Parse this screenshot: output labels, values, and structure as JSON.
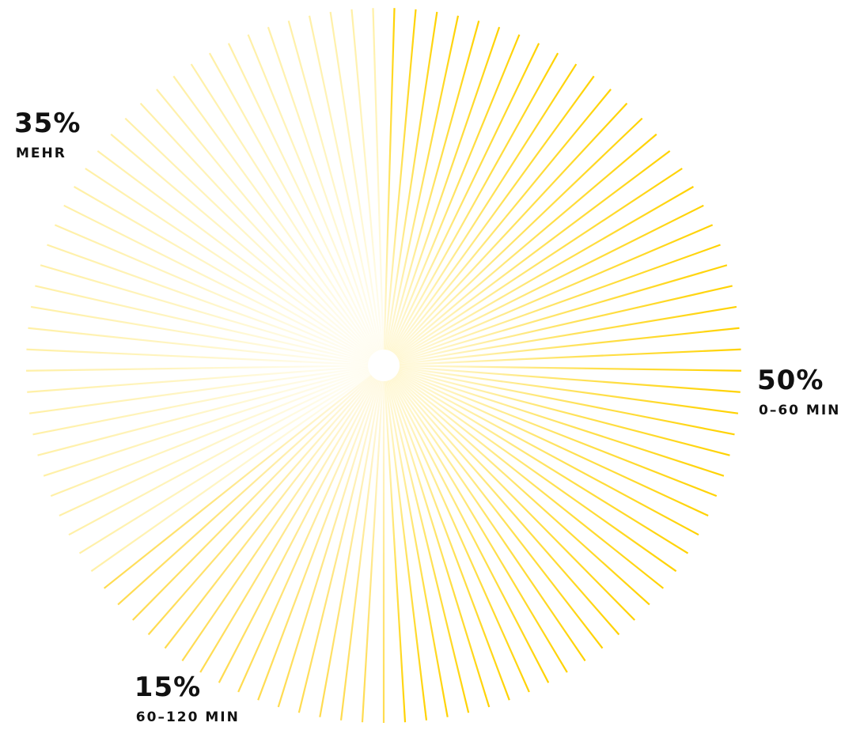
{
  "chart_data": {
    "type": "pie",
    "categories": [
      "0–60 MIN",
      "60–120 MIN",
      "MEHR"
    ],
    "values": [
      50,
      15,
      35
    ],
    "value_labels": [
      "50%",
      "15%",
      "35%"
    ],
    "colors": [
      "#ffd200",
      "#ffdb4d",
      "#fff0a6"
    ]
  }
}
